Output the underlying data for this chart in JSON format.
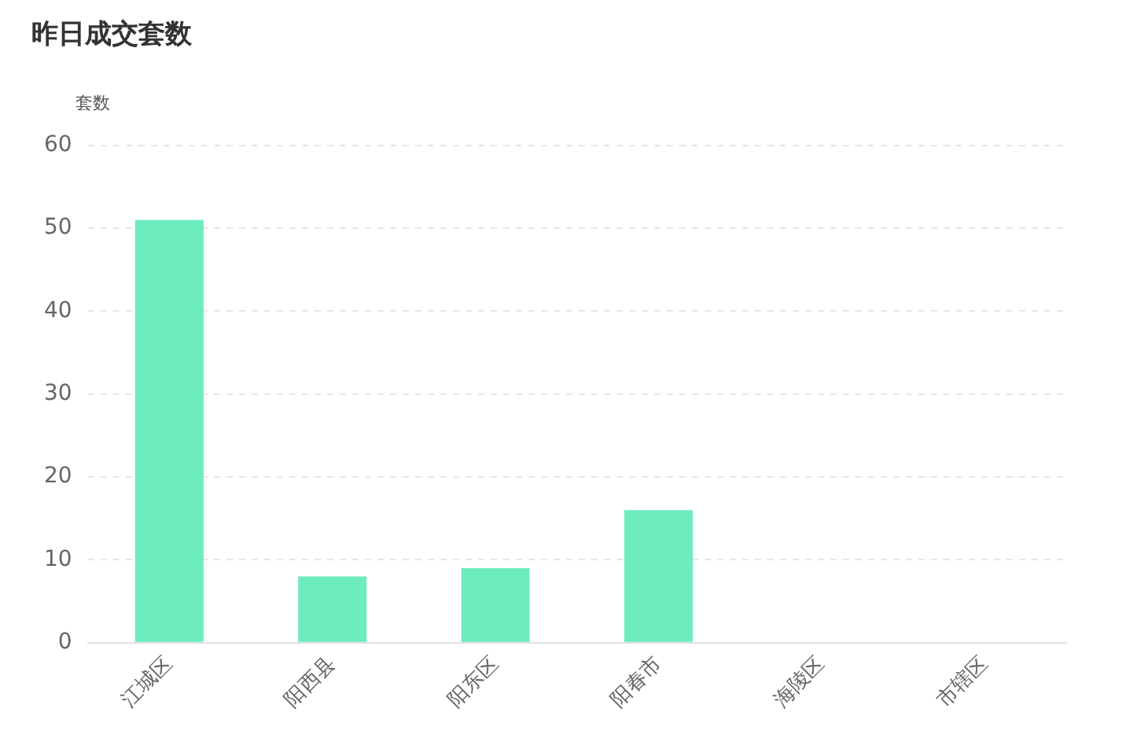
{
  "chart_data": {
    "type": "bar",
    "title": "昨日成交套数",
    "ylabel": "套数",
    "categories": [
      "江城区",
      "阳西县",
      "阳东区",
      "阳春市",
      "海陵区",
      "市辖区"
    ],
    "values": [
      51,
      8,
      9,
      16,
      0,
      0
    ],
    "color": "#6eecbd",
    "ylim": [
      0,
      60
    ],
    "yticks": [
      0,
      10,
      20,
      30,
      40,
      50,
      60
    ],
    "grid": "y"
  }
}
